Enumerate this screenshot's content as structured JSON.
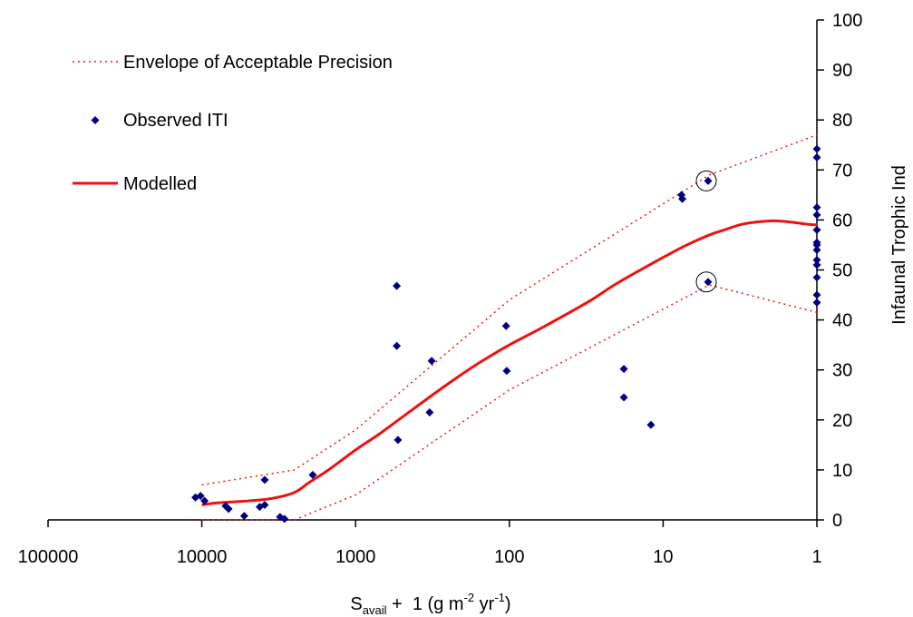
{
  "chart_data": {
    "type": "scatter",
    "x_axis": {
      "scale": "log",
      "reversed": true,
      "range": [
        100000,
        1
      ],
      "ticks": [
        100000,
        10000,
        1000,
        100,
        10,
        1
      ],
      "tick_labels": [
        "100000",
        "10000",
        "1000",
        "100",
        "10",
        "1"
      ],
      "label_main": "S",
      "label_sub": "avail",
      "label_mid": " +  1 (g m",
      "label_sup1": "-2",
      "label_yr": " yr",
      "label_sup2": "-1",
      "label_end": ")"
    },
    "y_axis": {
      "position": "right",
      "range": [
        0,
        100
      ],
      "ticks": [
        0,
        10,
        20,
        30,
        40,
        50,
        60,
        70,
        80,
        90,
        100
      ],
      "tick_labels": [
        "0",
        "10",
        "20",
        "30",
        "40",
        "50",
        "60",
        "70",
        "80",
        "90",
        "100"
      ],
      "label": "Infaunal Trophic Ind"
    },
    "grid": false,
    "legend": {
      "placement": "top-left",
      "entries": [
        {
          "label": "Envelope of Acceptable Precision",
          "style": "dotted-line",
          "color": "#e41a1c"
        },
        {
          "label": "Observed ITI",
          "style": "diamond-marker",
          "color": "#000080"
        },
        {
          "label": "Modelled",
          "style": "solid-line",
          "color": "#ee1111"
        }
      ]
    },
    "series": [
      {
        "name": "Observed ITI",
        "color": "#000080",
        "marker": "diamond",
        "points": [
          [
            11000,
            4.5
          ],
          [
            10200,
            4.8
          ],
          [
            9600,
            3.8
          ],
          [
            7000,
            2.8
          ],
          [
            6700,
            2.2
          ],
          [
            5300,
            0.8
          ],
          [
            4200,
            2.6
          ],
          [
            3900,
            3.0
          ],
          [
            3900,
            8.0
          ],
          [
            3100,
            0.6
          ],
          [
            2900,
            0.2
          ],
          [
            1900,
            9.0
          ],
          [
            540,
            46.8
          ],
          [
            540,
            34.8
          ],
          [
            530,
            16.0
          ],
          [
            330,
            21.5
          ],
          [
            320,
            31.8
          ],
          [
            105,
            38.8
          ],
          [
            104,
            29.8
          ],
          [
            18,
            30.2
          ],
          [
            18,
            24.5
          ],
          [
            12,
            19.0
          ],
          [
            7.6,
            65.0
          ],
          [
            7.5,
            64.2
          ],
          [
            5.1,
            67.8
          ],
          [
            5.1,
            47.6
          ],
          [
            1,
            74.2
          ],
          [
            1,
            72.5
          ],
          [
            1,
            62.5
          ],
          [
            1,
            61.0
          ],
          [
            1,
            58.0
          ],
          [
            1,
            55.5
          ],
          [
            1,
            55.0
          ],
          [
            1,
            54.0
          ],
          [
            1,
            52.0
          ],
          [
            1,
            51.0
          ],
          [
            1,
            48.5
          ],
          [
            1,
            45.0
          ],
          [
            1,
            43.5
          ]
        ]
      },
      {
        "name": "Modelled",
        "color": "#ee1111",
        "line": "solid",
        "points": [
          [
            10000,
            3.0
          ],
          [
            8000,
            3.4
          ],
          [
            5000,
            3.8
          ],
          [
            3500,
            4.3
          ],
          [
            2500,
            5.5
          ],
          [
            2000,
            7.5
          ],
          [
            1500,
            10.0
          ],
          [
            1000,
            14.0
          ],
          [
            700,
            17.2
          ],
          [
            500,
            20.5
          ],
          [
            300,
            25.5
          ],
          [
            200,
            29.3
          ],
          [
            150,
            31.8
          ],
          [
            100,
            35.0
          ],
          [
            60,
            38.6
          ],
          [
            30,
            43.8
          ],
          [
            20,
            47.3
          ],
          [
            10,
            52.5
          ],
          [
            7,
            55.0
          ],
          [
            5,
            57.0
          ],
          [
            4,
            58.0
          ],
          [
            3,
            59.2
          ],
          [
            2,
            59.8
          ],
          [
            1.5,
            59.6
          ],
          [
            1.2,
            59.2
          ],
          [
            1,
            59.0
          ]
        ]
      },
      {
        "name": "Envelope upper",
        "color": "#e41a1c",
        "line": "dotted",
        "points": [
          [
            10000,
            7.0
          ],
          [
            2500,
            10.0
          ],
          [
            1000,
            18.0
          ],
          [
            100,
            44.0
          ],
          [
            5,
            69.0
          ],
          [
            1,
            77.0
          ]
        ]
      },
      {
        "name": "Envelope lower",
        "color": "#e41a1c",
        "line": "dotted",
        "points": [
          [
            10000,
            0.0
          ],
          [
            2500,
            0.0
          ],
          [
            1000,
            5.0
          ],
          [
            100,
            26.0
          ],
          [
            5,
            47.0
          ],
          [
            1,
            41.5
          ]
        ]
      }
    ],
    "annotations": [
      {
        "shape": "circle",
        "x": 5.1,
        "y": 67.8
      },
      {
        "shape": "circle",
        "x": 5.1,
        "y": 47.6
      }
    ]
  }
}
